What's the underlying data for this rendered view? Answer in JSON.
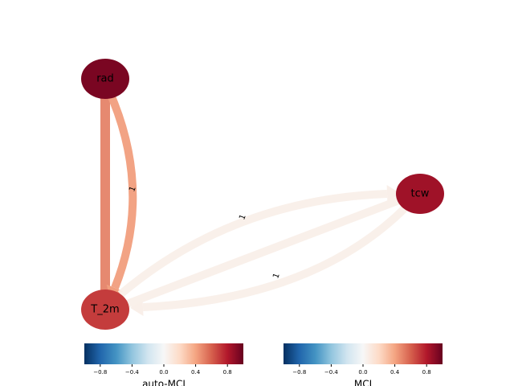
{
  "nodes": [
    {
      "label": "rad",
      "value": 0.95
    },
    {
      "label": "tcw",
      "value": 0.85
    },
    {
      "label": "T_2m",
      "value": 0.7
    }
  ],
  "edges": [
    {
      "source": 0,
      "target": 2,
      "value": 0.5
    },
    {
      "source": 0,
      "target": 2,
      "label": "1",
      "value": 0.42
    },
    {
      "source": 2,
      "target": 1,
      "label": "1",
      "value": 0.06
    },
    {
      "source": 1,
      "target": 2,
      "label": "1",
      "value": 0.06
    },
    {
      "source": 2,
      "target": 1,
      "value": 0.06
    }
  ],
  "colorbars": [
    {
      "label": "auto-MCI",
      "lim": [
        -1,
        1
      ],
      "ticks": [
        {
          "value": -0.8,
          "label": "−0.8"
        },
        {
          "value": -0.4,
          "label": "−0.4"
        },
        {
          "value": 0,
          "label": "0.0"
        },
        {
          "value": 0.4,
          "label": "0.4"
        },
        {
          "value": 0.8,
          "label": "0.8"
        }
      ]
    },
    {
      "label": "MCI",
      "lim": [
        -1,
        1
      ],
      "ticks": [
        {
          "value": -0.8,
          "label": "−0.8"
        },
        {
          "value": -0.4,
          "label": "−0.4"
        },
        {
          "value": 0,
          "label": "0.0"
        },
        {
          "value": 0.4,
          "label": "0.4"
        },
        {
          "value": 0.8,
          "label": "0.8"
        }
      ]
    }
  ]
}
